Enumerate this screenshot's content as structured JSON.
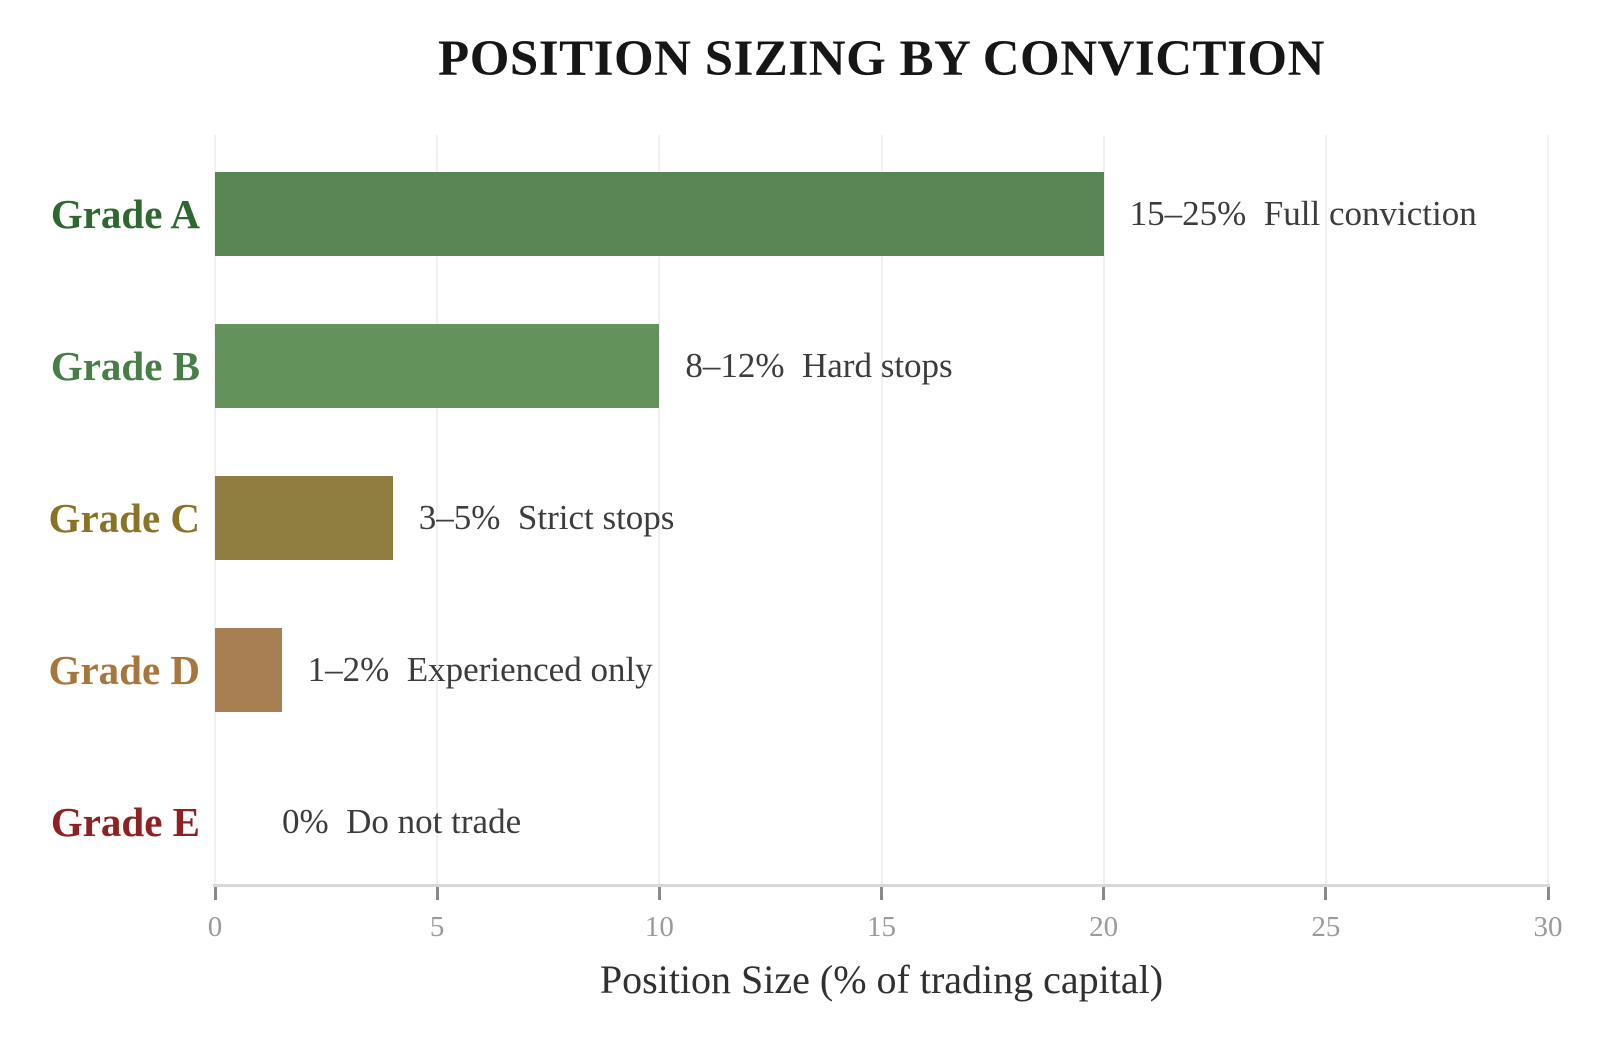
{
  "chart_data": {
    "type": "bar",
    "orientation": "horizontal",
    "title": "POSITION SIZING BY CONVICTION",
    "xlabel": "Position Size (% of trading capital)",
    "xlim": [
      0,
      30
    ],
    "xticks": [
      0,
      5,
      10,
      15,
      20,
      25,
      30
    ],
    "grid": true,
    "legend": false,
    "categories": [
      "Grade A",
      "Grade B",
      "Grade C",
      "Grade D",
      "Grade E"
    ],
    "values": [
      20,
      10,
      4,
      1.5,
      0
    ],
    "annotations": [
      "15–25%  Full conviction",
      "8–12%  Hard stops",
      "3–5%  Strict stops",
      "1–2%  Experienced only",
      "0%  Do not trade"
    ],
    "bar_colors": [
      "#588553",
      "#63925a",
      "#8e7d3e",
      "#a87f52",
      null
    ],
    "label_colors": [
      "#2d682f",
      "#477d46",
      "#8a7226",
      "#a6763c",
      "#8e2223"
    ],
    "annotation_color": "#3c3c3c",
    "tick_color": "#9a9a9a",
    "axis_color": "#d8d8d8",
    "grid_color": "#f0f0f0",
    "title_color": "#161616",
    "xlabel_color": "#303030"
  }
}
